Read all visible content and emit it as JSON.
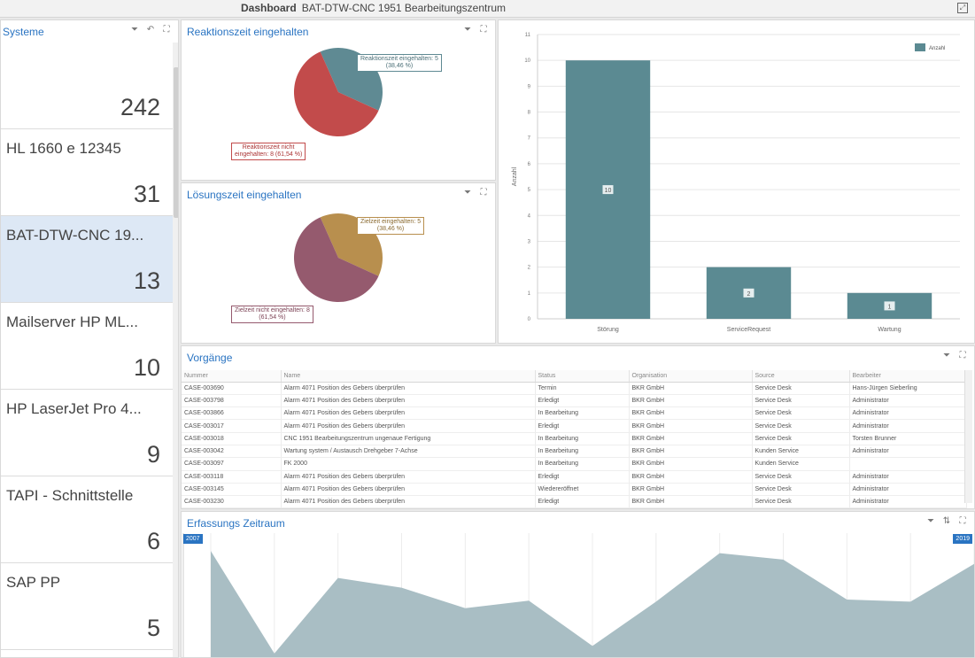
{
  "window": {
    "title_bold": "Dashboard",
    "title": "BAT-DTW-CNC 1951 Bearbeitungszentrum"
  },
  "systeme": {
    "title": "Systeme",
    "items": [
      {
        "name": "",
        "count": "242"
      },
      {
        "name": "HL 1660 e 12345",
        "count": "31"
      },
      {
        "name": "BAT-DTW-CNC 19...",
        "count": "13",
        "selected": true
      },
      {
        "name": "Mailserver HP ML...",
        "count": "10"
      },
      {
        "name": "HP LaserJet Pro 4...",
        "count": "9"
      },
      {
        "name": "TAPI - Schnittstelle",
        "count": "6"
      },
      {
        "name": "SAP PP",
        "count": "5"
      }
    ]
  },
  "reaktion": {
    "title": "Reaktionszeit eingehalten",
    "slices": [
      {
        "label1": "Reaktionszeit eingehalten: 5",
        "label2": "(38,46 %)",
        "value": 38.46,
        "color": "#5f8a93"
      },
      {
        "label1": "Reaktionszeit nicht",
        "label2": "eingehalten: 8 (61,54 %)",
        "value": 61.54,
        "color": "#c24b4b"
      }
    ]
  },
  "loesung": {
    "title": "Lösungszeit eingehalten",
    "slices": [
      {
        "label1": "Zielzeit eingehalten: 5",
        "label2": "(38,46 %)",
        "value": 38.46,
        "color": "#b88f4e"
      },
      {
        "label1": "Zielzeit nicht eingehalten: 8",
        "label2": "(61,54 %)",
        "value": 61.54,
        "color": "#955a6e"
      }
    ]
  },
  "chart_data": {
    "type": "bar",
    "categories": [
      "Störung",
      "ServiceRequest",
      "Wartung"
    ],
    "series": [
      {
        "name": "Anzahl",
        "values": [
          10,
          2,
          1
        ]
      }
    ],
    "data_labels": [
      "10",
      "2",
      "1"
    ],
    "ylabel": "Anzahl",
    "ylim": [
      0,
      11
    ],
    "yticks": [
      "0",
      "1",
      "2",
      "3",
      "4",
      "5",
      "6",
      "7",
      "8",
      "9",
      "10",
      "11"
    ],
    "grid": true,
    "legend": "top-right",
    "color": "#5b8a92"
  },
  "vorgaenge": {
    "title": "Vorgänge",
    "columns": [
      "Nummer",
      "Name",
      "Status",
      "Organisation",
      "Source",
      "Bearbeiter"
    ],
    "rows": [
      [
        "CASE-003690",
        "Alarm 4071 Position des Gebers überprüfen",
        "Termin",
        "BKR GmbH",
        "Service Desk",
        "Hans-Jürgen Sieberling"
      ],
      [
        "CASE-003798",
        "Alarm 4071 Position des Gebers überprüfen",
        "Erledigt",
        "BKR GmbH",
        "Service Desk",
        "Administrator"
      ],
      [
        "CASE-003866",
        "Alarm 4071 Position des Gebers überprüfen",
        "In Bearbeitung",
        "BKR GmbH",
        "Service Desk",
        "Administrator"
      ],
      [
        "CASE-003017",
        "Alarm 4071 Position des Gebers überprüfen",
        "Erledigt",
        "BKR GmbH",
        "Service Desk",
        "Administrator"
      ],
      [
        "CASE-003018",
        "CNC 1951 Bearbeitungszentrum ungenaue Fertigung",
        "In Bearbeitung",
        "BKR GmbH",
        "Service Desk",
        "Torsten Brunner"
      ],
      [
        "CASE-003042",
        "Wartung system / Austausch Drehgeber 7-Achse",
        "In Bearbeitung",
        "BKR GmbH",
        "Kunden Service",
        "Administrator"
      ],
      [
        "CASE-003097",
        "FK 2000",
        "In Bearbeitung",
        "BKR GmbH",
        "Kunden Service",
        ""
      ],
      [
        "CASE-003118",
        "Alarm 4071 Position des Gebers überprüfen",
        "Erledigt",
        "BKR GmbH",
        "Service Desk",
        "Administrator"
      ],
      [
        "CASE-003145",
        "Alarm 4071 Position des Gebers überprüfen",
        "Wiedereröffnet",
        "BKR GmbH",
        "Service Desk",
        "Administrator"
      ],
      [
        "CASE-003230",
        "Alarm 4071 Position des Gebers überprüfen",
        "Erledigt",
        "BKR GmbH",
        "Service Desk",
        "Administrator"
      ]
    ]
  },
  "erfassung": {
    "title": "Erfassungs Zeitraum",
    "start": "2007",
    "end": "2019",
    "values": [
      10,
      0.5,
      7.5,
      6.6,
      4.7,
      5.4,
      1.2,
      5.3,
      9.8,
      9.2,
      5.5,
      5.3,
      8.8
    ],
    "color": "#a9bec4"
  },
  "icons": {
    "filter": "filter-icon",
    "undo": "undo-icon",
    "maximize": "maximize-icon"
  }
}
